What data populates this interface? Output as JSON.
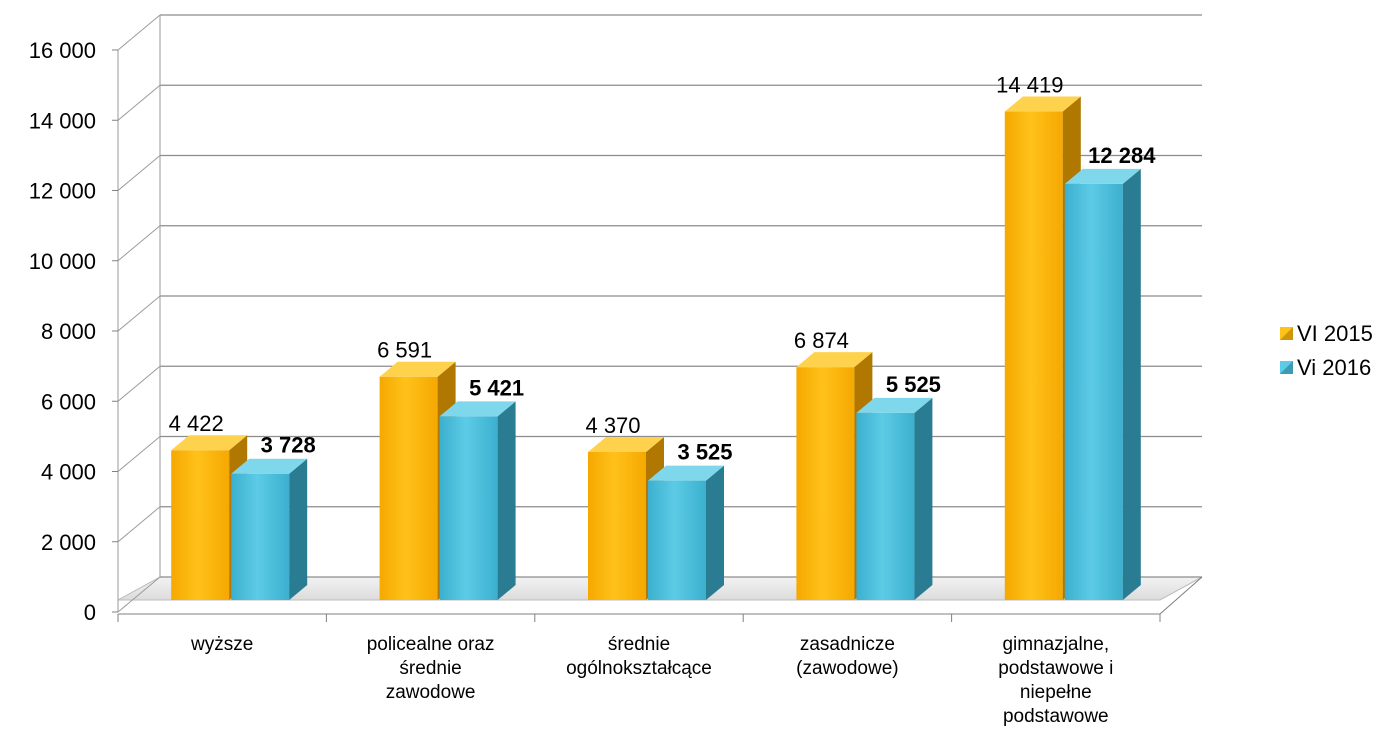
{
  "chart_data": {
    "type": "bar",
    "categories": [
      [
        "wyższe"
      ],
      [
        "policealne oraz",
        "średnie",
        "zawodowe"
      ],
      [
        "średnie",
        "ogólnokształcące"
      ],
      [
        "zasadnicze",
        "(zawodowe)"
      ],
      [
        "gimnazjalne,",
        "podstawowe i",
        "niepełne",
        "podstawowe"
      ]
    ],
    "series": [
      {
        "name": "VI 2015",
        "values": [
          4422,
          6591,
          4370,
          6874,
          14419
        ],
        "labels": [
          "4 422",
          "6 591",
          "4 370",
          "6 874",
          "14 419"
        ],
        "bold": false,
        "color": "#F5A800",
        "color_light": "#FFC21A",
        "color_side": "#B07800",
        "color_top": "#FFD24D"
      },
      {
        "name": "Vi 2016",
        "values": [
          3728,
          5421,
          3525,
          5525,
          12284
        ],
        "labels": [
          "3 728",
          "5 421",
          "3 525",
          "5 525",
          "12 284"
        ],
        "bold": true,
        "color": "#3BB0CE",
        "color_light": "#5CCBE6",
        "color_side": "#2A7C92",
        "color_top": "#7FD7EC"
      }
    ],
    "ylim": [
      0,
      16000
    ],
    "yticks": [
      0,
      2000,
      4000,
      6000,
      8000,
      10000,
      12000,
      14000,
      16000
    ],
    "ytick_labels": [
      "0",
      "2 000",
      "4 000",
      "6 000",
      "8 000",
      "10 000",
      "12 000",
      "14 000",
      "16 000"
    ],
    "grid": true,
    "legend_position": "right",
    "style": "3d-clustered-column"
  }
}
